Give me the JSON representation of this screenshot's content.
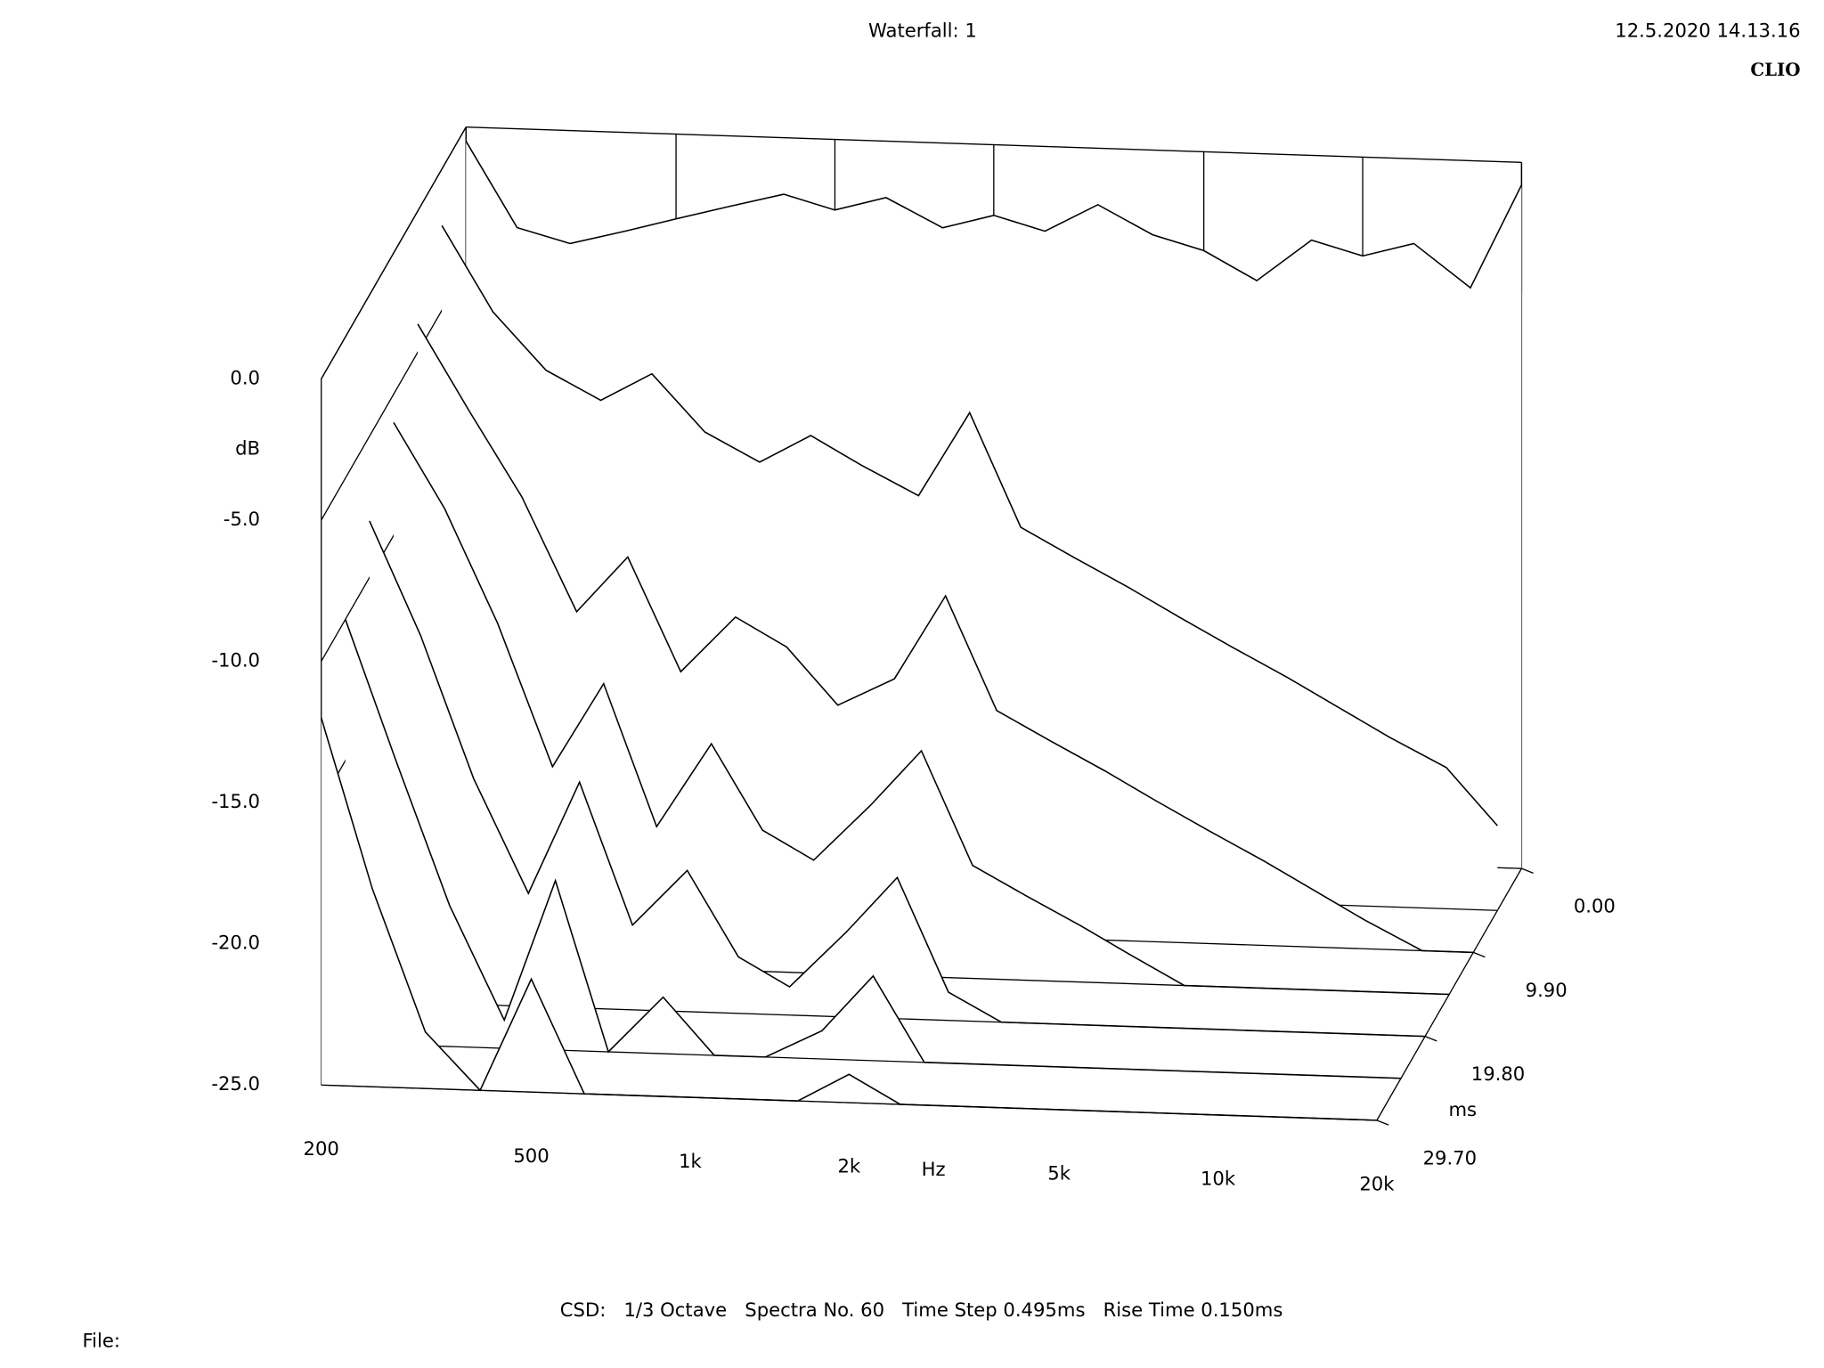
{
  "chart_data": {
    "type": "waterfall",
    "title": "Waterfall: 1",
    "date": "12.5.2020 14.13.16",
    "brand": "CLIO",
    "footer": "CSD:   1/3 Octave   Spectra No. 60   Time Step 0.495ms   Rise Time 0.150ms",
    "file_label": "File:",
    "x_label": "Hz",
    "y_label": "dB",
    "z_label": "ms",
    "log_x": true,
    "x": [
      200,
      250,
      315,
      400,
      500,
      630,
      800,
      1000,
      1250,
      1600,
      2000,
      2500,
      3150,
      4000,
      5000,
      6300,
      8000,
      10000,
      12500,
      16000,
      20000
    ],
    "xlim": [
      200,
      20000
    ],
    "xticks": [
      {
        "value": 200,
        "label": "200"
      },
      {
        "value": 500,
        "label": "500"
      },
      {
        "value": 1000,
        "label": "1k"
      },
      {
        "value": 2000,
        "label": "2k"
      },
      {
        "value": 5000,
        "label": "5k"
      },
      {
        "value": 10000,
        "label": "10k"
      },
      {
        "value": 20000,
        "label": "20k"
      }
    ],
    "ylim": [
      -25,
      0
    ],
    "yticks": [
      {
        "value": 0,
        "label": "0.0"
      },
      {
        "value": -5,
        "label": "-5.0"
      },
      {
        "value": -10,
        "label": "-10.0"
      },
      {
        "value": -15,
        "label": "-15.0"
      },
      {
        "value": -20,
        "label": "-20.0"
      },
      {
        "value": -25,
        "label": "-25.0"
      }
    ],
    "zlim": [
      0,
      29.7
    ],
    "zticks": [
      {
        "value": 0,
        "label": "0.00"
      },
      {
        "value": 9.9,
        "label": "9.90"
      },
      {
        "value": 19.8,
        "label": "19.80"
      },
      {
        "value": 29.7,
        "label": "29.70"
      }
    ],
    "color": "#000000",
    "series": [
      {
        "time": 0,
        "values": [
          -0.5,
          -3.5,
          -4,
          -3.5,
          -3,
          -2.5,
          -2,
          -2.5,
          -2,
          -3,
          -2.5,
          -3,
          -2,
          -3,
          -3.5,
          -4.5,
          -3,
          -3.5,
          -3,
          -4.5,
          -0.8
        ]
      },
      {
        "time": 4.95,
        "values": [
          -2,
          -5,
          -7,
          -8,
          -7,
          -9,
          -10,
          -9,
          -10,
          -11,
          -8,
          -12,
          -13,
          -14,
          -15,
          -16,
          -17,
          -18,
          -19,
          -20,
          -22
        ]
      },
      {
        "time": 9.9,
        "values": [
          -4,
          -7,
          -10,
          -14,
          -12,
          -16,
          -14,
          -15,
          -17,
          -16,
          -13,
          -17,
          -18,
          -19,
          -20,
          -21,
          -22,
          -23,
          -24,
          -25,
          -25
        ]
      },
      {
        "time": 14.85,
        "values": [
          -6,
          -9,
          -13,
          -18,
          -15,
          -20,
          -17,
          -20,
          -21,
          -19,
          -17,
          -21,
          -22,
          -23,
          -24,
          -25,
          -25,
          -25,
          -25,
          -25,
          -25
        ]
      },
      {
        "time": 19.8,
        "values": [
          -8,
          -12,
          -17,
          -21,
          -17,
          -22,
          -20,
          -23,
          -24,
          -22,
          -20,
          -24,
          -25,
          -25,
          -25,
          -25,
          -25,
          -25,
          -25,
          -25,
          -25
        ]
      },
      {
        "time": 24.75,
        "values": [
          -10,
          -15,
          -20,
          -24,
          -19,
          -25,
          -23,
          -25,
          -25,
          -24,
          -22,
          -25,
          -25,
          -25,
          -25,
          -25,
          -25,
          -25,
          -25,
          -25,
          -25
        ]
      },
      {
        "time": 29.7,
        "values": [
          -12,
          -18,
          -23,
          -25,
          -21,
          -25,
          -25,
          -25,
          -25,
          -25,
          -24,
          -25,
          -25,
          -25,
          -25,
          -25,
          -25,
          -25,
          -25,
          -25,
          -25
        ]
      }
    ]
  }
}
